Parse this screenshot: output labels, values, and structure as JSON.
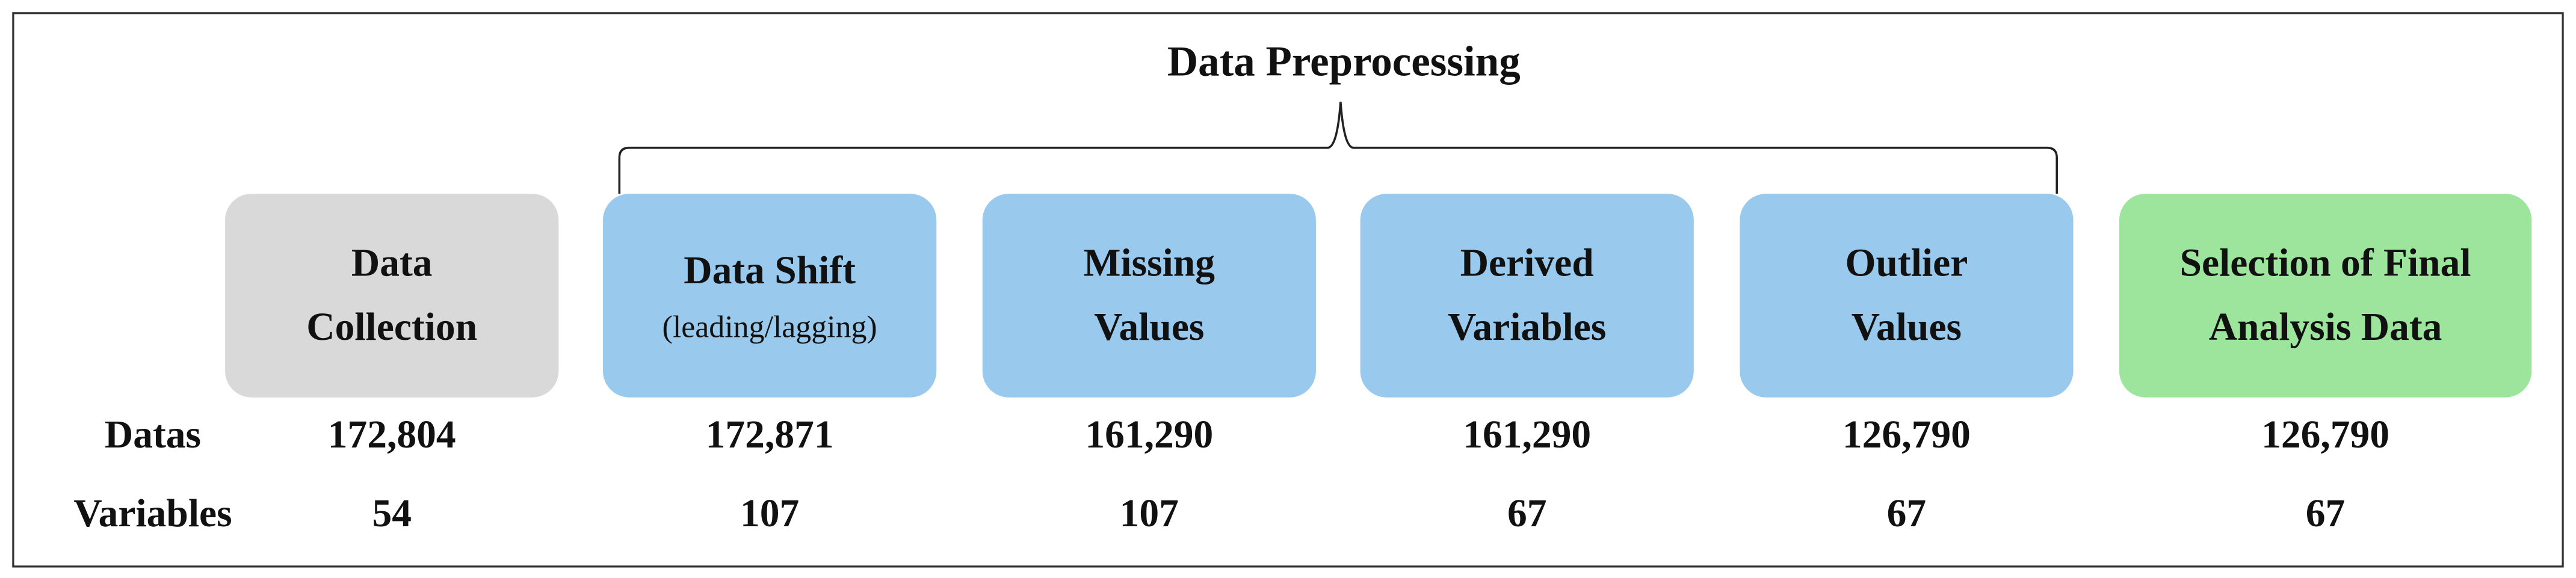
{
  "title": "Data Preprocessing",
  "row_labels": [
    "Datas",
    "Variables"
  ],
  "stages": [
    {
      "label_lines": [
        "Data",
        "Collection"
      ],
      "datas": "172,804",
      "variables": "54"
    },
    {
      "label_lines": [
        "Data Shift"
      ],
      "sublabel": "(leading/lagging)",
      "datas": "172,871",
      "variables": "107"
    },
    {
      "label_lines": [
        "Missing",
        "Values"
      ],
      "datas": "161,290",
      "variables": "107"
    },
    {
      "label_lines": [
        "Derived",
        "Variables"
      ],
      "datas": "161,290",
      "variables": "67"
    },
    {
      "label_lines": [
        "Outlier",
        "Values"
      ],
      "datas": "126,790",
      "variables": "67"
    },
    {
      "label_lines": [
        "Selection of Final",
        "Analysis  Data"
      ],
      "datas": "126,790",
      "variables": "67"
    }
  ]
}
